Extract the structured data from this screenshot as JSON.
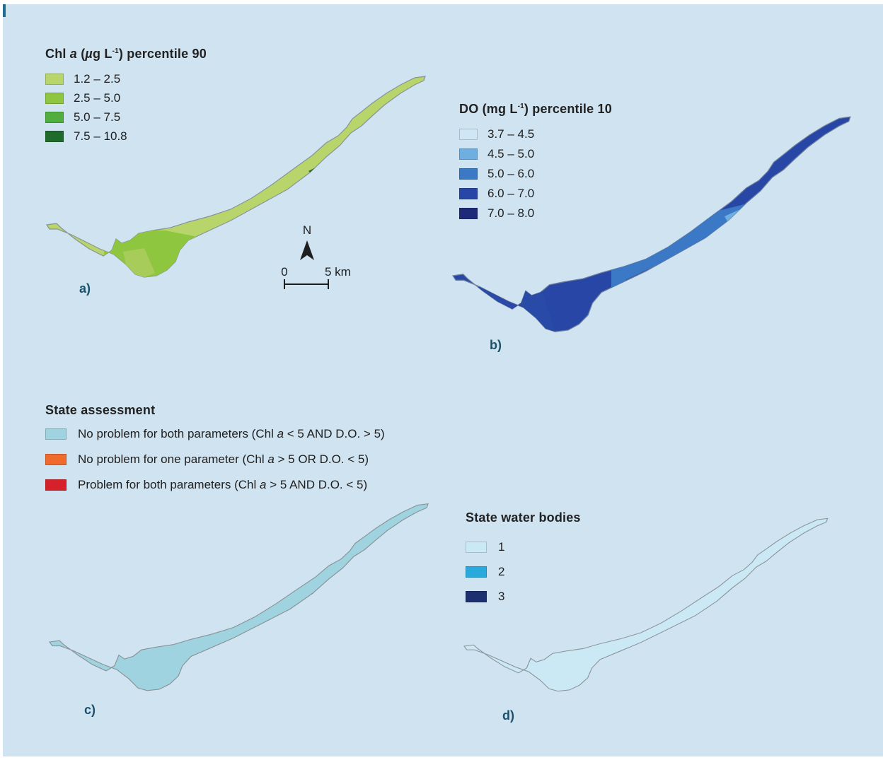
{
  "legends": {
    "a": {
      "title_pre": "Chl ",
      "title_italic": "a",
      "title_unit_open": " (",
      "title_mu": "µ",
      "title_g": "g L",
      "title_sup": "-1",
      "title_post": ") percentile 90",
      "items": [
        {
          "label": "1.2 – 2.5",
          "color": "#b7d56b"
        },
        {
          "label": "2.5 – 5.0",
          "color": "#8ec63f"
        },
        {
          "label": "5.0 – 7.5",
          "color": "#4fae3d"
        },
        {
          "label": "7.5 – 10.8",
          "color": "#1f6b2b"
        }
      ]
    },
    "b": {
      "title_pre": "DO (mg L",
      "title_sup": "-1",
      "title_post": ") percentile 10",
      "items": [
        {
          "label": "3.7 – 4.5",
          "color": "#cfe6f5"
        },
        {
          "label": "4.5 – 5.0",
          "color": "#6faee0"
        },
        {
          "label": "5.0 – 6.0",
          "color": "#3b78c6"
        },
        {
          "label": "6.0 – 7.0",
          "color": "#2846a6"
        },
        {
          "label": "7.0 – 8.0",
          "color": "#1c2a78"
        }
      ]
    },
    "c": {
      "title": "State assessment",
      "items": [
        {
          "pre": "No problem for both parameters (Chl ",
          "ital": "a",
          "post": " < 5 AND D.O. > 5)",
          "color": "#9fd3e0"
        },
        {
          "pre": "No problem for one parameter (Chl ",
          "ital": "a",
          "post": " > 5 OR D.O. < 5)",
          "color": "#ef6a2c"
        },
        {
          "pre": "Problem for both parameters (Chl ",
          "ital": "a",
          "post": " > 5 AND D.O. < 5)",
          "color": "#d7212a"
        }
      ]
    },
    "d": {
      "title": "State water bodies",
      "items": [
        {
          "label": "1",
          "color": "#cbe8f5"
        },
        {
          "label": "2",
          "color": "#2aa9dc"
        },
        {
          "label": "3",
          "color": "#1c2f6f"
        }
      ]
    }
  },
  "panel_labels": {
    "a": "a)",
    "b": "b)",
    "c": "c)",
    "d": "d)"
  },
  "north_arrow": {
    "label": "N"
  },
  "scale_bar": {
    "start": "0",
    "end": "5 km"
  },
  "colors": {
    "background": "#cfe3f1",
    "outline": "#8a9397"
  }
}
